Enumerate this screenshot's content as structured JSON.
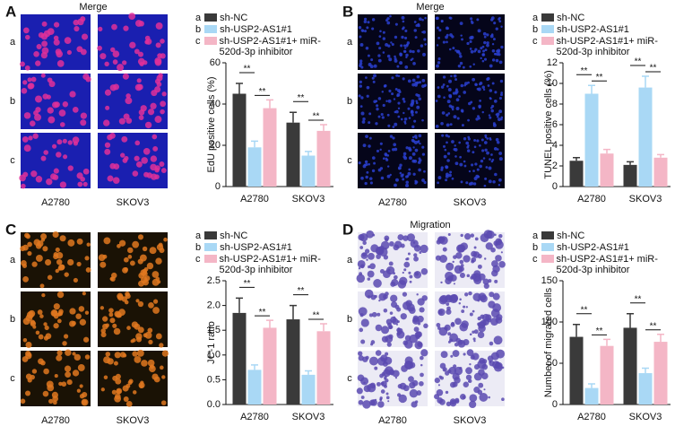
{
  "panels": [
    {
      "letter": "A",
      "image_title": "Merge",
      "row_labels": [
        "a",
        "b",
        "c"
      ],
      "column_labels": [
        "A2780",
        "SKOV3"
      ]
    },
    {
      "letter": "B",
      "image_title": "Merge",
      "row_labels": [
        "a",
        "b",
        "c"
      ],
      "column_labels": [
        "A2780",
        "SKOV3"
      ]
    },
    {
      "letter": "C",
      "row_labels": [
        "a",
        "b",
        "c"
      ],
      "column_labels": [
        "A2780",
        "SKOV3"
      ]
    },
    {
      "letter": "D",
      "image_title": "Migration",
      "row_labels": [
        "a",
        "b",
        "c"
      ],
      "column_labels": [
        "A2780",
        "SKOV3"
      ]
    }
  ],
  "chart_data": [
    {
      "type": "bar",
      "y_label": "EdU positive cells (%)",
      "categories": [
        "A2780",
        "SKOV3"
      ],
      "legend_keys": [
        "a",
        "b",
        "c"
      ],
      "series": [
        {
          "name": "sh-NC",
          "color": "#3a3a3a",
          "values": [
            45,
            31
          ],
          "errors": [
            5,
            5
          ]
        },
        {
          "name": "sh-USP2-AS1#1",
          "color": "#a9d8f5",
          "values": [
            19,
            15
          ],
          "errors": [
            3,
            2
          ]
        },
        {
          "name": "sh-USP2-AS1#1+ miR-520d-3p inhibitor",
          "color": "#f4b6c6",
          "values": [
            38,
            27
          ],
          "errors": [
            4,
            3
          ]
        }
      ],
      "ylim": [
        0,
        60
      ],
      "yticks": [
        0,
        20,
        40,
        60
      ],
      "annotations": [
        "**",
        "**",
        "**",
        "**"
      ]
    },
    {
      "type": "bar",
      "y_label": "TUNEL positive cells (%)",
      "categories": [
        "A2780",
        "SKOV3"
      ],
      "legend_keys": [
        "a",
        "b",
        "c"
      ],
      "series": [
        {
          "name": "sh-NC",
          "color": "#3a3a3a",
          "values": [
            2.5,
            2.1
          ],
          "errors": [
            0.3,
            0.3
          ]
        },
        {
          "name": "sh-USP2-AS1#1",
          "color": "#a9d8f5",
          "values": [
            9,
            9.6
          ],
          "errors": [
            0.8,
            1.1
          ]
        },
        {
          "name": "sh-USP2-AS1#1+ miR-520d-3p inhibitor",
          "color": "#f4b6c6",
          "values": [
            3.2,
            2.8
          ],
          "errors": [
            0.4,
            0.3
          ]
        }
      ],
      "ylim": [
        0,
        12
      ],
      "yticks": [
        0,
        2,
        4,
        6,
        8,
        10,
        12
      ],
      "annotations": [
        "**",
        "**",
        "**",
        "**"
      ]
    },
    {
      "type": "bar",
      "y_label": "JC-1 ratio",
      "categories": [
        "A2780",
        "SKOV3"
      ],
      "legend_keys": [
        "a",
        "b",
        "c"
      ],
      "series": [
        {
          "name": "sh-NC",
          "color": "#3a3a3a",
          "values": [
            1.85,
            1.72
          ],
          "errors": [
            0.3,
            0.28
          ]
        },
        {
          "name": "sh-USP2-AS1#1",
          "color": "#a9d8f5",
          "values": [
            0.7,
            0.6
          ],
          "errors": [
            0.1,
            0.08
          ]
        },
        {
          "name": "sh-USP2-AS1#1+ miR-520d-3p inhibitor",
          "color": "#f4b6c6",
          "values": [
            1.55,
            1.48
          ],
          "errors": [
            0.15,
            0.15
          ]
        }
      ],
      "ylim": [
        0,
        2.5
      ],
      "yticks": [
        {
          "value": 0,
          "label": "0.0"
        },
        0.5,
        {
          "value": 1,
          "label": "1.0"
        },
        1.5,
        {
          "value": 2,
          "label": "2.0"
        },
        2.5
      ],
      "annotations": [
        "**",
        "**",
        "**",
        "**"
      ]
    },
    {
      "type": "bar",
      "y_label": "Number of migrated cells",
      "categories": [
        "A2780",
        "SKOV3"
      ],
      "legend_keys": [
        "a",
        "b",
        "c"
      ],
      "series": [
        {
          "name": "sh-NC",
          "color": "#3a3a3a",
          "values": [
            82,
            93
          ],
          "errors": [
            15,
            17
          ]
        },
        {
          "name": "sh-USP2-AS1#1",
          "color": "#a9d8f5",
          "values": [
            20,
            38
          ],
          "errors": [
            5,
            6
          ]
        },
        {
          "name": "sh-USP2-AS1#1+ miR-520d-3p inhibitor",
          "color": "#f4b6c6",
          "values": [
            71,
            76
          ],
          "errors": [
            8,
            9
          ]
        }
      ],
      "ylim": [
        0,
        150
      ],
      "yticks": [
        0,
        50,
        100,
        150
      ],
      "annotations": [
        "**",
        "**",
        "**",
        "**"
      ]
    }
  ]
}
